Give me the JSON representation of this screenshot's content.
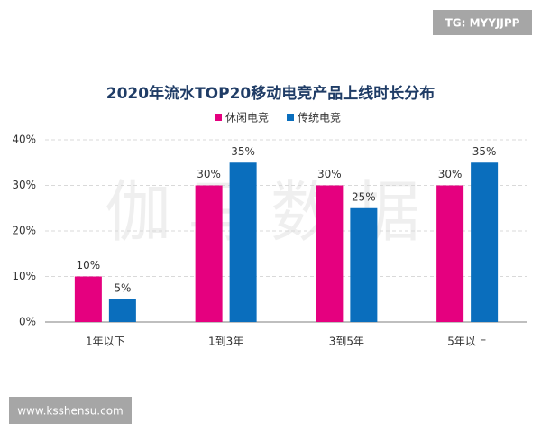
{
  "chart_data": {
    "type": "bar",
    "title": "2020年流水TOP20移动电竞产品上线时长分布",
    "categories": [
      "1年以下",
      "1到3年",
      "3到5年",
      "5年以上"
    ],
    "series": [
      {
        "name": "休闲电竞",
        "color": "#e5007f",
        "values": [
          10,
          30,
          30,
          30
        ],
        "value_labels": [
          "10%",
          "30%",
          "30%",
          "30%"
        ]
      },
      {
        "name": "传统电竞",
        "color": "#0a6ebd",
        "values": [
          5,
          35,
          25,
          35
        ],
        "value_labels": [
          "5%",
          "35%",
          "25%",
          "35%"
        ]
      }
    ],
    "ylim": [
      0,
      40
    ],
    "yticks": [
      {
        "value": 0,
        "label": "0%"
      },
      {
        "value": 10,
        "label": "10%"
      },
      {
        "value": 20,
        "label": "20%"
      },
      {
        "value": 30,
        "label": "30%"
      },
      {
        "value": 40,
        "label": "40%"
      }
    ],
    "grid": true,
    "legend": "top"
  },
  "watermarks": [
    "TG: MYYJJPP",
    "www.ksshensu.com",
    "伽马数据"
  ]
}
